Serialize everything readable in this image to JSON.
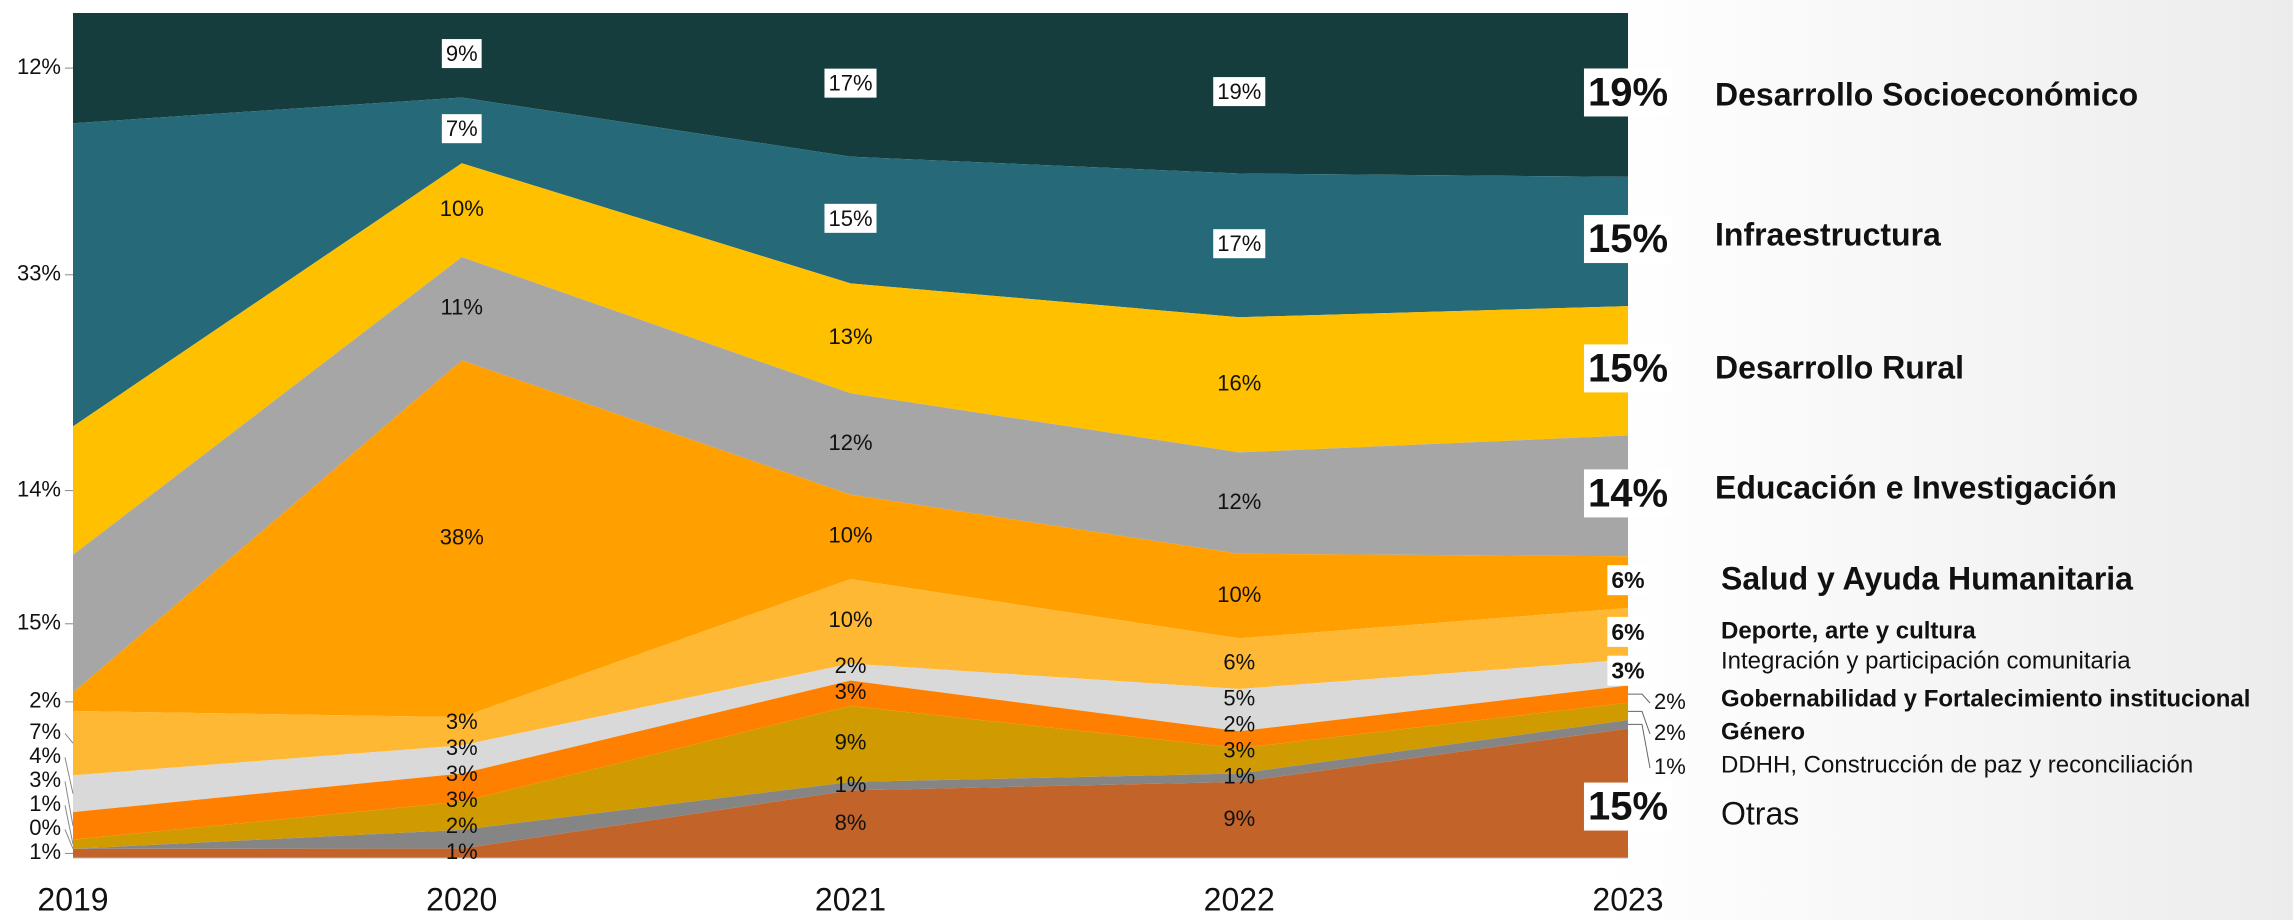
{
  "chart_data": {
    "type": "stacked100_area",
    "categories": [
      "2019",
      "2020",
      "2021",
      "2022",
      "2023"
    ],
    "series": [
      {
        "name": "Desarrollo Socioeconómico",
        "color": "#153d3d",
        "values": [
          12,
          9,
          17,
          19,
          19
        ],
        "value_labels": [
          "12%",
          "9%",
          "17%",
          "19%",
          "19%"
        ]
      },
      {
        "name": "Infraestructura",
        "color": "#266a79",
        "values": [
          33,
          7,
          15,
          17,
          15
        ],
        "value_labels": [
          "33%",
          "7%",
          "15%",
          "17%",
          "15%"
        ]
      },
      {
        "name": "Desarrollo Rural",
        "color": "#ffc000",
        "values": [
          14,
          10,
          13,
          16,
          15
        ],
        "value_labels": [
          "14%",
          "10%",
          "13%",
          "16%",
          "15%"
        ]
      },
      {
        "name": "Educación e Investigación",
        "color": "#a6a6a6",
        "values": [
          15,
          11,
          12,
          12,
          14
        ],
        "value_labels": [
          "15%",
          "11%",
          "12%",
          "12%",
          "14%"
        ]
      },
      {
        "name": "Salud y Ayuda Humanitaria",
        "color": "#ff9f00",
        "values": [
          2,
          38,
          10,
          10,
          6
        ],
        "value_labels": [
          "2%",
          "38%",
          "10%",
          "10%",
          "6%"
        ]
      },
      {
        "name": "Deporte, arte y cultura",
        "color": "#ffb833",
        "values": [
          7,
          3,
          10,
          6,
          6
        ],
        "value_labels": [
          "7%",
          "3%",
          "10%",
          "6%",
          "6%"
        ]
      },
      {
        "name": "Integración y participación comunitaria",
        "color": "#d9d9d9",
        "values": [
          4,
          3,
          2,
          5,
          3
        ],
        "value_labels": [
          "4%",
          "3%",
          "2%",
          "5%",
          "3%"
        ]
      },
      {
        "name": "Gobernabilidad y Fortalecimiento institucional",
        "color": "#ff7f00",
        "values": [
          3,
          3,
          3,
          2,
          2
        ],
        "value_labels": [
          "3%",
          "3%",
          "3%",
          "2%",
          "2%"
        ]
      },
      {
        "name": "Género",
        "color": "#d09b00",
        "values": [
          1,
          3,
          9,
          3,
          2
        ],
        "value_labels": [
          "1%",
          "3%",
          "9%",
          "3%",
          "2%"
        ]
      },
      {
        "name": "DDHH, Construcción de paz y reconciliación",
        "color": "#858585",
        "values": [
          0,
          2,
          1,
          1,
          1
        ],
        "value_labels": [
          "0%",
          "2%",
          "1%",
          "1%",
          "1%"
        ]
      },
      {
        "name": "Otras",
        "color": "#c2632a",
        "values": [
          1,
          1,
          8,
          9,
          15
        ],
        "value_labels": [
          "1%",
          "1%",
          "8%",
          "9%",
          "15%"
        ]
      }
    ]
  }
}
